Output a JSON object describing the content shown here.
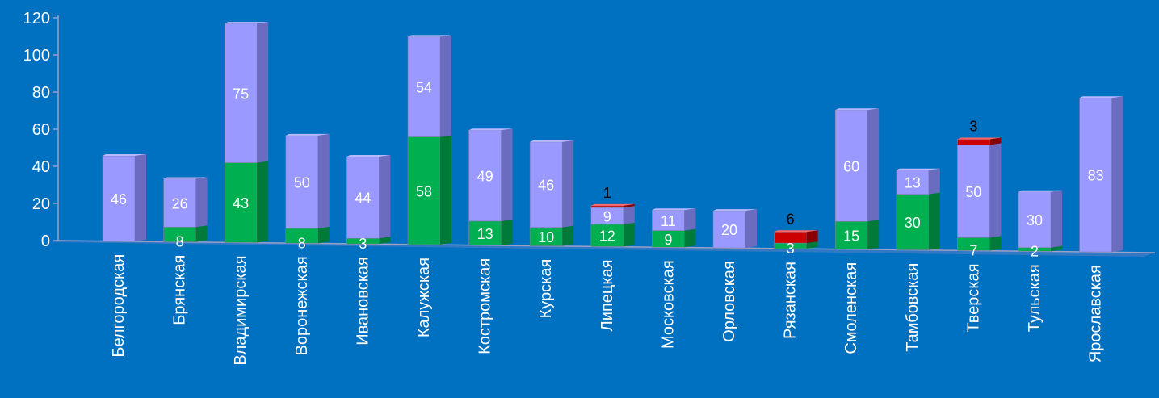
{
  "colors": {
    "background": "#0070c0",
    "lavender": "#9999ff",
    "lavender_side": "#6b6bbf",
    "lavender_top": "#b8b8ff",
    "green": "#00b050",
    "green_side": "#007a38",
    "red": "#cc0000",
    "axis": "#9aa0c8",
    "text": "#ffffff"
  },
  "chart_data": {
    "type": "bar",
    "stacked": true,
    "legend": "none",
    "grid": false,
    "ylim": [
      0,
      120
    ],
    "yticks": [
      0,
      20,
      40,
      60,
      80,
      100,
      120
    ],
    "categories": [
      "Белгородская",
      "Брянская",
      "Владимирская",
      "Воронежская",
      "Ивановская",
      "Калужская",
      "Костромская",
      "Курская",
      "Липецкая",
      "Московская",
      "Орловская",
      "Рязанская",
      "Смоленская",
      "Тамбовская",
      "Тверская",
      "Тульская",
      "Ярославская"
    ],
    "series": [
      {
        "color": "green",
        "values": [
          0,
          8,
          43,
          8,
          3,
          58,
          13,
          10,
          12,
          9,
          0,
          3,
          15,
          30,
          7,
          2,
          0
        ]
      },
      {
        "color": "lavender",
        "values": [
          46,
          26,
          75,
          50,
          44,
          54,
          49,
          46,
          9,
          11,
          20,
          0,
          60,
          13,
          50,
          30,
          83
        ]
      },
      {
        "color": "red",
        "values": [
          0,
          0,
          0,
          0,
          0,
          0,
          0,
          0,
          1,
          0,
          0,
          6,
          0,
          0,
          3,
          0,
          0
        ]
      }
    ]
  }
}
